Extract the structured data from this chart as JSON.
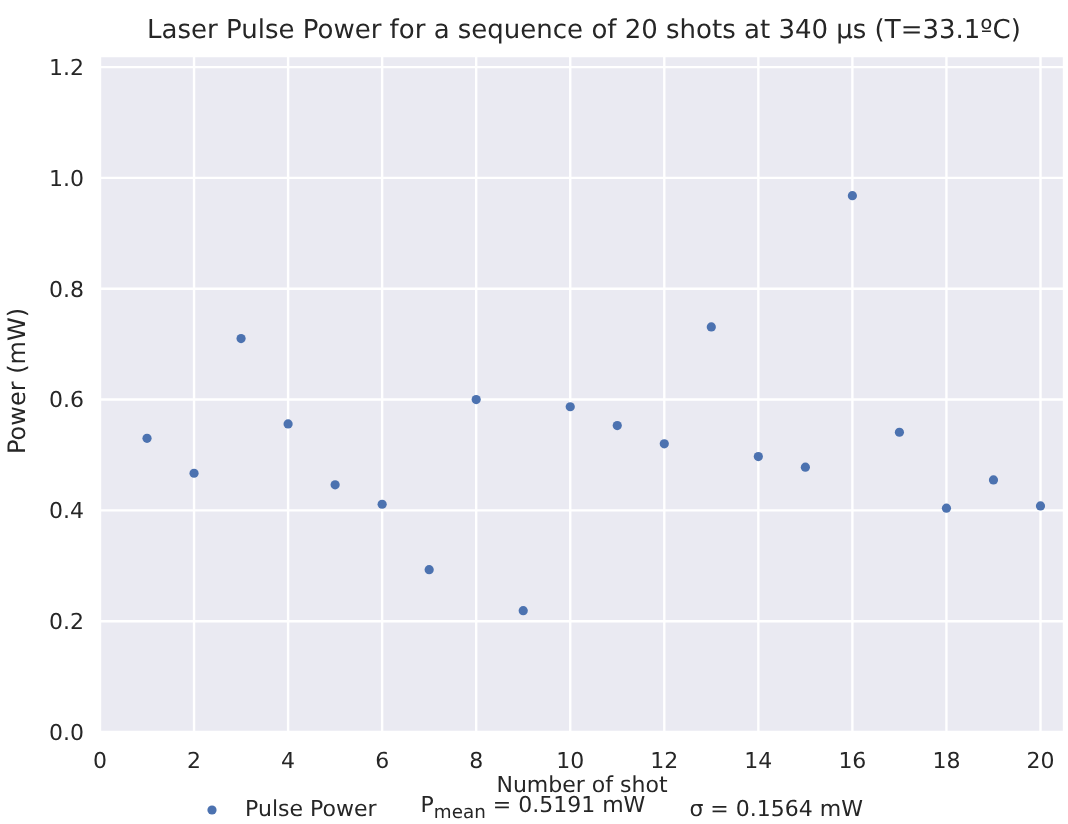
{
  "chart_data": {
    "type": "scatter",
    "title": "Laser Pulse Power for a sequence of 20 shots at 340 μs (T=33.1ºC)",
    "xlabel": "Number of shot",
    "ylabel": "Power (mW)",
    "x": [
      1,
      2,
      3,
      4,
      5,
      6,
      7,
      8,
      9,
      10,
      11,
      12,
      13,
      14,
      15,
      16,
      17,
      18,
      19,
      20
    ],
    "series": [
      {
        "name": "Pulse Power",
        "color": "#4c72b0",
        "values": [
          0.53,
          0.467,
          0.71,
          0.556,
          0.446,
          0.411,
          0.293,
          0.6,
          0.219,
          0.587,
          0.553,
          0.52,
          0.731,
          0.497,
          0.478,
          0.968,
          0.541,
          0.404,
          0.455,
          0.408
        ]
      }
    ],
    "xlim": [
      0,
      20.5
    ],
    "ylim": [
      0,
      1.22
    ],
    "xticks": [
      0,
      2,
      4,
      6,
      8,
      10,
      12,
      14,
      16,
      18,
      20
    ],
    "yticks": [
      {
        "value": 0,
        "label": "0.0"
      },
      {
        "value": 0.2,
        "label": "0.2"
      },
      {
        "value": 0.4,
        "label": "0.4"
      },
      {
        "value": 0.6,
        "label": "0.6"
      },
      {
        "value": 0.8,
        "label": "0.8"
      },
      {
        "value": 1,
        "label": "1.0"
      },
      {
        "value": 1.2,
        "label": "1.2"
      }
    ],
    "grid": true,
    "legend": "bottom",
    "marker": "circle",
    "annotations": [
      "P$_{mean}$ = 0.5191 mW",
      "σ = 0.1564 mW"
    ]
  }
}
